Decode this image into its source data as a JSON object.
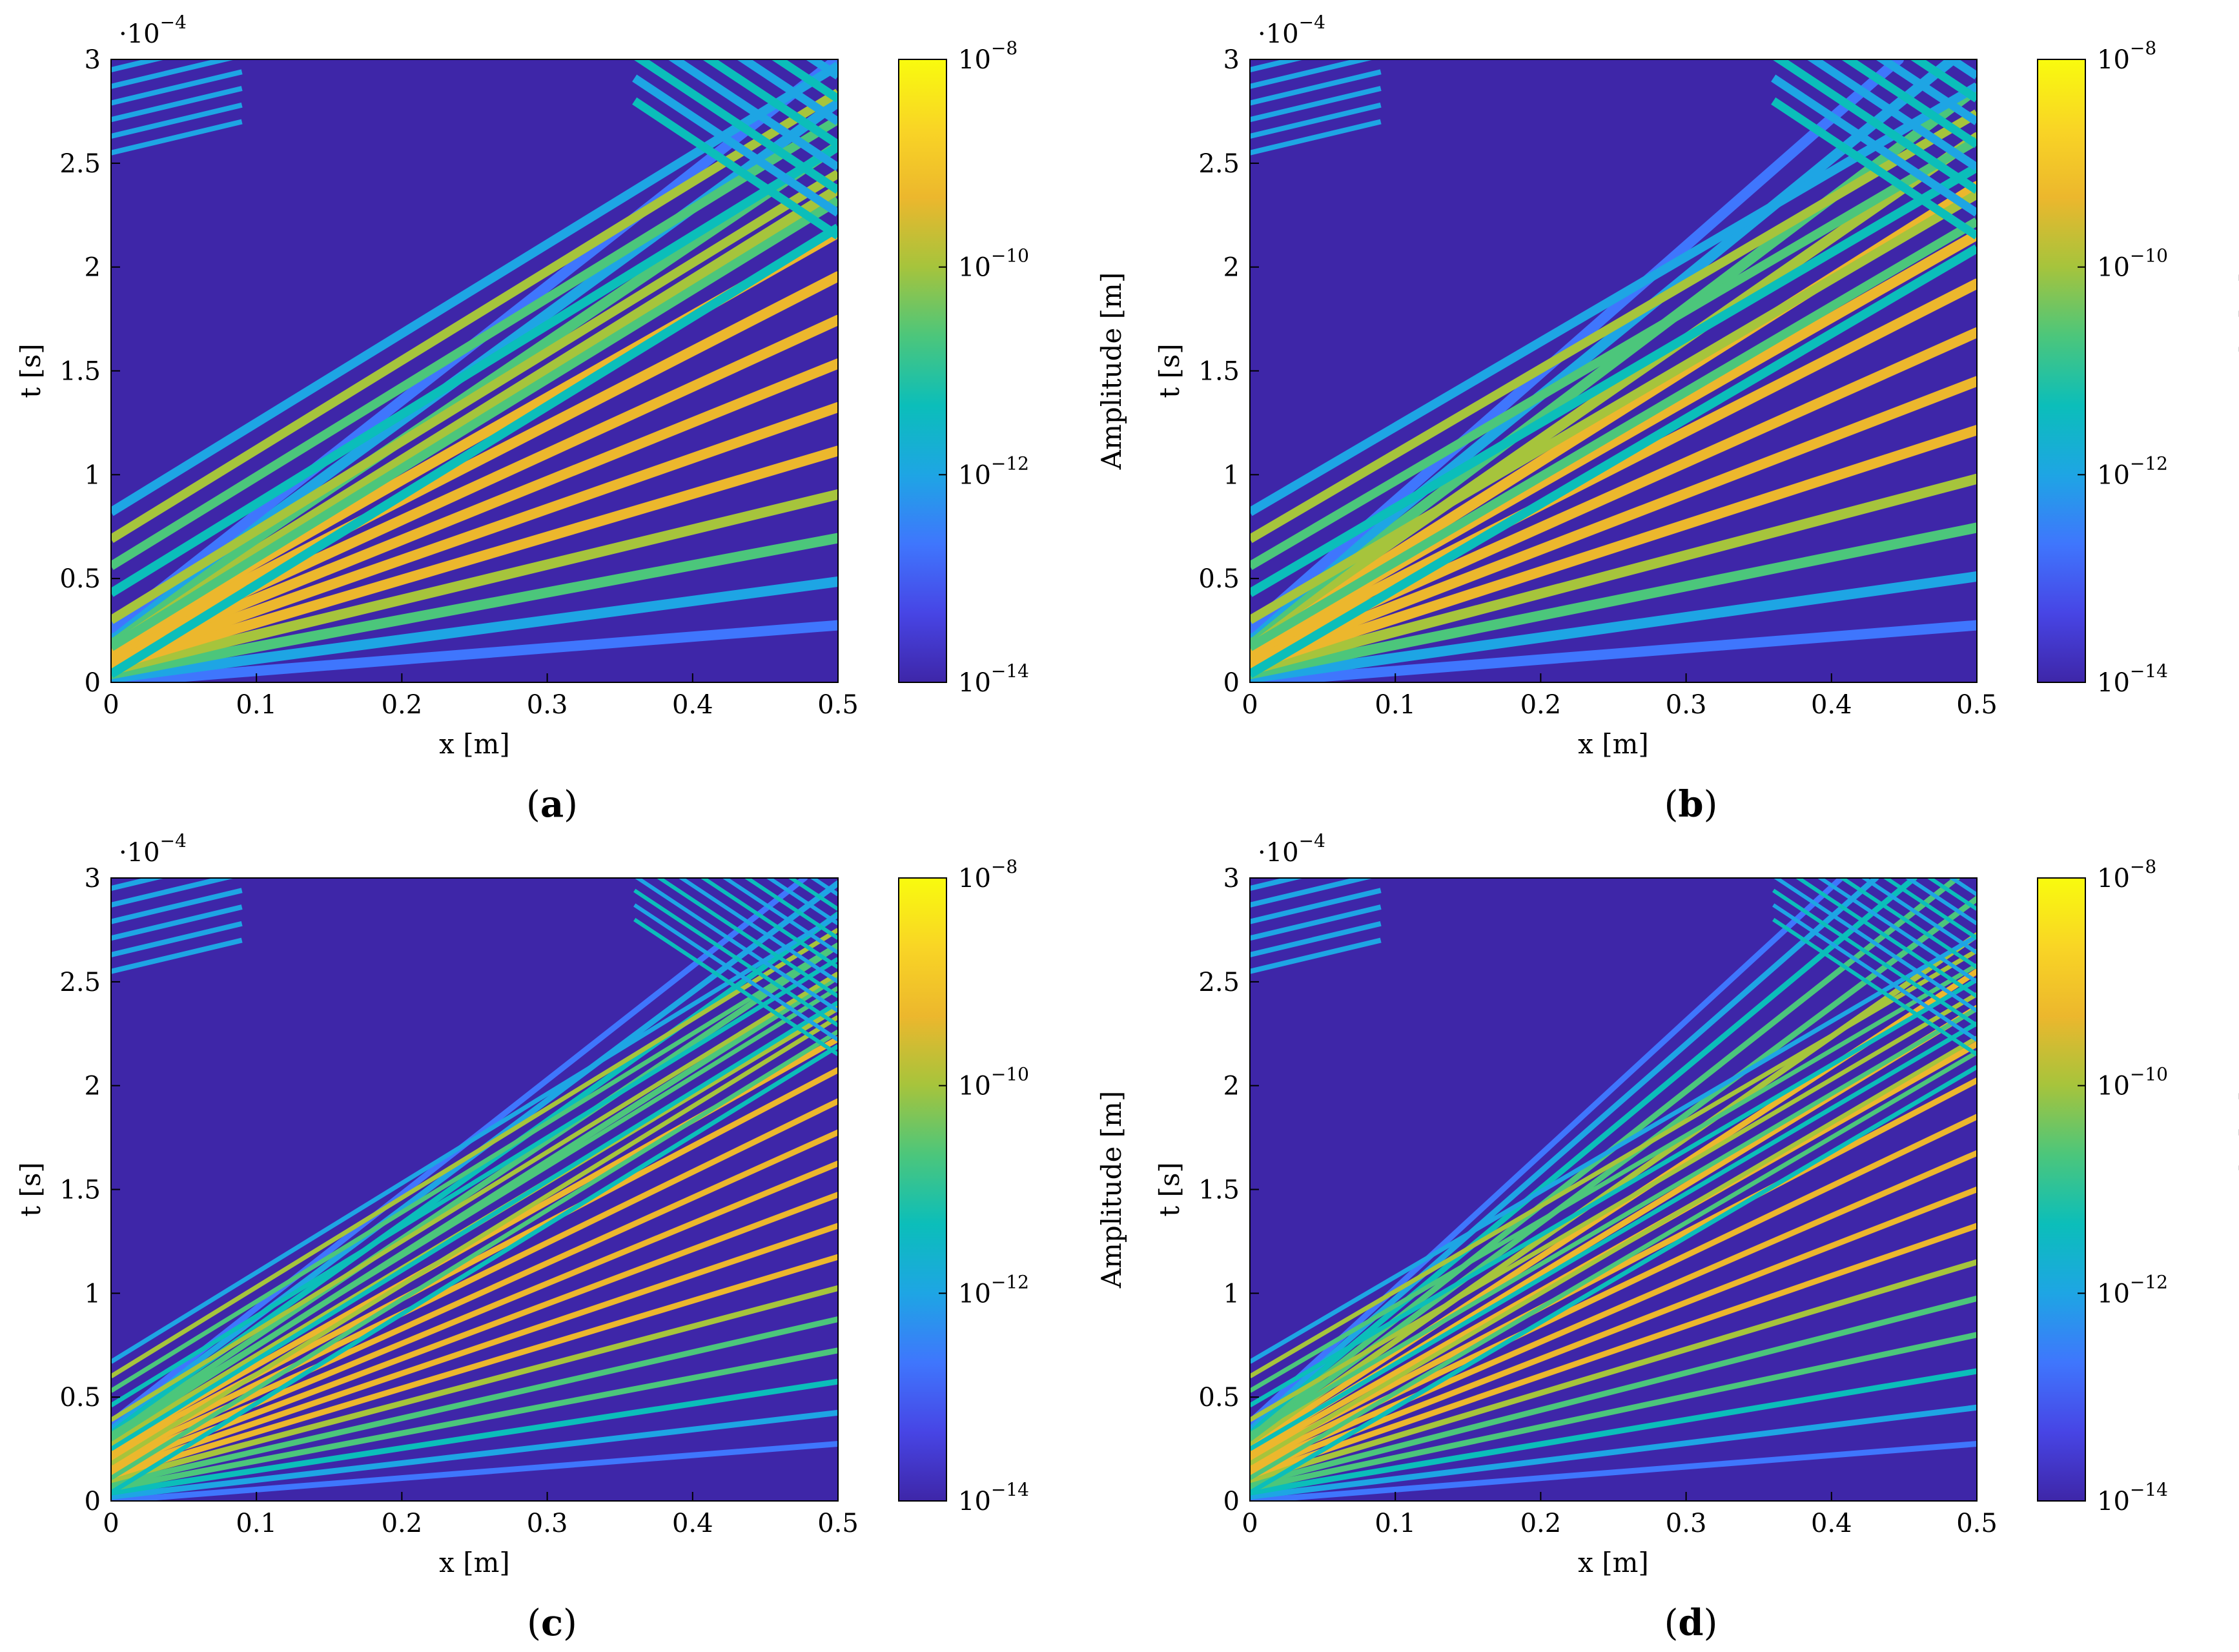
{
  "colormap_stops": [
    "#3e26a8",
    "#4745e5",
    "#3f76fd",
    "#1ea5e4",
    "#0bbeba",
    "#4cc67b",
    "#a6c43c",
    "#ecb72d",
    "#f9d525",
    "#f9fb0e"
  ],
  "chart_data": [
    {
      "type": "heatmap",
      "caption": "a",
      "xlabel": "x [m]",
      "ylabel": "t [s]",
      "xlim": [
        0,
        0.5
      ],
      "ylim": [
        0,
        3
      ],
      "y_multiplier": "·10^-4",
      "x_ticks": [
        "0",
        "0.1",
        "0.2",
        "0.3",
        "0.4",
        "0.5"
      ],
      "y_ticks": [
        "0",
        "0.5",
        "1",
        "1.5",
        "2",
        "2.5",
        "3"
      ],
      "colorbar": {
        "label": "Amplitude [m]",
        "scale": "log",
        "range": [
          -14,
          -8
        ],
        "ticks": [
          "10^-14",
          "10^-12",
          "10^-10",
          "10^-8"
        ]
      }
    },
    {
      "type": "heatmap",
      "caption": "b",
      "xlabel": "x [m]",
      "ylabel": "t [s]",
      "xlim": [
        0,
        0.5
      ],
      "ylim": [
        0,
        3
      ],
      "y_multiplier": "·10^-4",
      "x_ticks": [
        "0",
        "0.1",
        "0.2",
        "0.3",
        "0.4",
        "0.5"
      ],
      "y_ticks": [
        "0",
        "0.5",
        "1",
        "1.5",
        "2",
        "2.5",
        "3"
      ],
      "colorbar": {
        "label": "Amplitude [m]",
        "scale": "log",
        "range": [
          -14,
          -8
        ],
        "ticks": [
          "10^-14",
          "10^-12",
          "10^-10",
          "10^-8"
        ]
      }
    },
    {
      "type": "heatmap",
      "caption": "c",
      "xlabel": "x [m]",
      "ylabel": "t [s]",
      "xlim": [
        0,
        0.5
      ],
      "ylim": [
        0,
        3
      ],
      "y_multiplier": "·10^-4",
      "x_ticks": [
        "0",
        "0.1",
        "0.2",
        "0.3",
        "0.4",
        "0.5"
      ],
      "y_ticks": [
        "0",
        "0.5",
        "1",
        "1.5",
        "2",
        "2.5",
        "3"
      ],
      "colorbar": {
        "label": "Amplitude [m]",
        "scale": "log",
        "range": [
          -14,
          -8
        ],
        "ticks": [
          "10^-14",
          "10^-12",
          "10^-10",
          "10^-8"
        ]
      }
    },
    {
      "type": "heatmap",
      "caption": "d",
      "xlabel": "x [m]",
      "ylabel": "t [s]",
      "xlim": [
        0,
        0.5
      ],
      "ylim": [
        0,
        3
      ],
      "y_multiplier": "·10^-4",
      "x_ticks": [
        "0",
        "0.1",
        "0.2",
        "0.3",
        "0.4",
        "0.5"
      ],
      "y_ticks": [
        "0",
        "0.5",
        "1",
        "1.5",
        "2",
        "2.5",
        "3"
      ],
      "colorbar": {
        "label": "Amplitude [m]",
        "scale": "log",
        "range": [
          -14,
          -8
        ],
        "ticks": [
          "10^-14",
          "10^-12",
          "10^-10",
          "10^-8"
        ]
      }
    }
  ]
}
